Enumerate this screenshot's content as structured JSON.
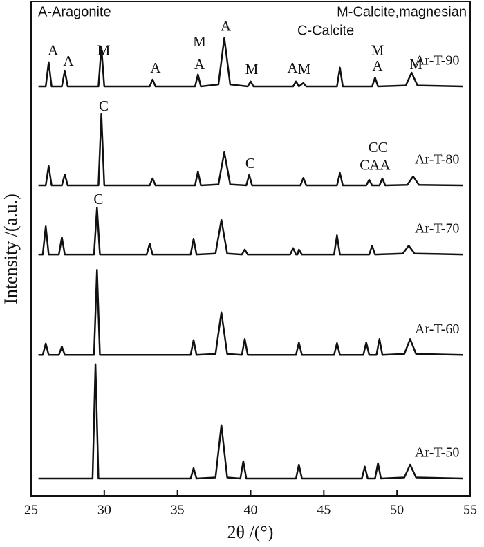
{
  "chart_data": {
    "type": "line",
    "xlabel": "2θ /(°)",
    "ylabel": "Intensity /(a.u.)",
    "xlim": [
      25,
      55
    ],
    "xticks": [
      25,
      30,
      35,
      40,
      45,
      50,
      55
    ],
    "ylim": [
      0,
      100
    ],
    "key": [
      "A-Aragonite",
      "M-Calcite,magnesian",
      "C-Calcite"
    ],
    "series": [
      {
        "name": "Ar-T-90",
        "color": "#111111",
        "x": [
          25.5,
          26.0,
          26.2,
          26.4,
          27.1,
          27.3,
          27.5,
          29.6,
          29.8,
          30.0,
          33.1,
          33.3,
          33.5,
          36.2,
          36.4,
          36.6,
          37.8,
          38.2,
          38.6,
          39.8,
          40.0,
          40.2,
          42.9,
          43.1,
          43.3,
          43.6,
          43.8,
          45.9,
          46.1,
          46.3,
          48.3,
          48.5,
          48.7,
          50.6,
          51.0,
          51.4,
          54.5
        ],
        "values": [
          82.8,
          82.8,
          87.7,
          82.8,
          82.8,
          86.0,
          82.8,
          82.8,
          90.8,
          82.8,
          82.8,
          84.2,
          82.8,
          82.8,
          85.2,
          82.8,
          83.2,
          92.6,
          83.2,
          82.8,
          83.8,
          82.8,
          82.8,
          83.8,
          82.8,
          83.5,
          82.8,
          82.8,
          86.6,
          82.8,
          82.8,
          84.6,
          82.8,
          83.0,
          85.6,
          83.0,
          82.8
        ]
      },
      {
        "name": "Ar-T-80",
        "color": "#111111",
        "x": [
          25.5,
          26.0,
          26.2,
          26.4,
          27.1,
          27.3,
          27.5,
          29.6,
          29.8,
          30.0,
          33.1,
          33.3,
          33.5,
          36.2,
          36.4,
          36.6,
          37.8,
          38.2,
          38.6,
          39.7,
          39.9,
          40.1,
          43.4,
          43.6,
          43.8,
          45.9,
          46.1,
          46.3,
          47.9,
          48.1,
          48.3,
          48.8,
          49.0,
          49.2,
          50.7,
          51.1,
          51.5,
          54.5
        ],
        "values": [
          62.8,
          62.8,
          66.7,
          62.8,
          62.8,
          65.0,
          62.8,
          62.8,
          77.2,
          62.8,
          62.8,
          64.2,
          62.8,
          62.8,
          65.6,
          62.8,
          63.0,
          69.5,
          63.0,
          62.8,
          64.9,
          62.8,
          62.8,
          64.3,
          62.8,
          62.8,
          65.3,
          62.8,
          62.8,
          63.9,
          62.8,
          62.8,
          64.2,
          62.8,
          62.9,
          64.6,
          62.9,
          62.8
        ]
      },
      {
        "name": "Ar-T-70",
        "color": "#111111",
        "x": [
          25.5,
          25.8,
          26.0,
          26.2,
          26.9,
          27.1,
          27.3,
          29.3,
          29.5,
          29.7,
          32.9,
          33.1,
          33.3,
          35.9,
          36.1,
          36.3,
          37.6,
          38.0,
          38.4,
          39.4,
          39.6,
          39.8,
          42.7,
          42.9,
          43.1,
          43.2,
          43.3,
          43.5,
          45.7,
          45.9,
          46.1,
          48.1,
          48.3,
          48.5,
          50.4,
          50.8,
          51.2,
          54.5
        ],
        "values": [
          48.8,
          48.8,
          54.5,
          48.8,
          48.8,
          52.3,
          48.8,
          48.8,
          58.3,
          48.8,
          48.8,
          51.0,
          48.8,
          48.8,
          52.0,
          48.8,
          49.0,
          55.8,
          49.0,
          48.8,
          49.8,
          48.8,
          48.8,
          50.1,
          48.8,
          48.8,
          49.8,
          48.8,
          48.8,
          52.7,
          48.8,
          48.8,
          50.6,
          48.8,
          49.0,
          50.6,
          49.0,
          48.8
        ]
      },
      {
        "name": "Ar-T-60",
        "color": "#111111",
        "x": [
          25.5,
          25.8,
          26.0,
          26.2,
          26.9,
          27.1,
          27.3,
          29.3,
          29.5,
          29.7,
          35.9,
          36.1,
          36.3,
          37.6,
          38.0,
          38.4,
          39.4,
          39.6,
          39.8,
          43.1,
          43.3,
          43.5,
          45.7,
          45.9,
          46.1,
          47.7,
          47.9,
          48.1,
          48.6,
          48.8,
          49.0,
          50.5,
          50.9,
          51.3,
          54.5
        ],
        "values": [
          28.5,
          28.5,
          30.8,
          28.5,
          28.5,
          30.2,
          28.5,
          28.5,
          45.7,
          28.5,
          28.5,
          31.5,
          28.5,
          28.7,
          37.1,
          28.7,
          28.5,
          31.7,
          28.5,
          28.5,
          31.0,
          28.5,
          28.5,
          30.9,
          28.5,
          28.5,
          31.0,
          28.5,
          28.5,
          31.7,
          28.5,
          28.7,
          31.7,
          28.7,
          28.5
        ]
      },
      {
        "name": "Ar-T-50",
        "color": "#111111",
        "x": [
          25.5,
          29.2,
          29.4,
          29.6,
          35.9,
          36.1,
          36.3,
          37.6,
          38.0,
          38.4,
          39.3,
          39.5,
          39.7,
          43.1,
          43.3,
          43.5,
          47.6,
          47.8,
          48.0,
          48.5,
          48.7,
          48.9,
          50.5,
          50.9,
          51.3,
          54.5
        ],
        "values": [
          3.5,
          3.5,
          26.6,
          3.5,
          3.5,
          5.6,
          3.5,
          3.7,
          14.3,
          3.7,
          3.5,
          7.0,
          3.5,
          3.5,
          6.3,
          3.5,
          3.5,
          5.9,
          3.5,
          3.5,
          6.6,
          3.5,
          3.7,
          6.3,
          3.7,
          3.5
        ]
      }
    ],
    "annotations": [
      {
        "text": "A",
        "x": 26.5,
        "y": 89.8
      },
      {
        "text": "A",
        "x": 27.55,
        "y": 87.7
      },
      {
        "text": "M",
        "x": 29.96,
        "y": 89.8
      },
      {
        "text": "A",
        "x": 33.5,
        "y": 86.3
      },
      {
        "text": "M",
        "x": 36.5,
        "y": 91.6
      },
      {
        "text": "A",
        "x": 36.5,
        "y": 87.0
      },
      {
        "text": "A",
        "x": 38.3,
        "y": 94.7
      },
      {
        "text": "M",
        "x": 40.07,
        "y": 86.0
      },
      {
        "text": "A",
        "x": 42.86,
        "y": 86.3
      },
      {
        "text": "M",
        "x": 43.66,
        "y": 86.0
      },
      {
        "text": "M",
        "x": 48.67,
        "y": 89.8
      },
      {
        "text": "A",
        "x": 48.67,
        "y": 86.7
      },
      {
        "text": "M",
        "x": 51.3,
        "y": 87.0
      },
      {
        "text": "C",
        "x": 29.96,
        "y": 78.6
      },
      {
        "text": "C",
        "x": 39.97,
        "y": 67.0
      },
      {
        "text": "CC",
        "x": 48.7,
        "y": 70.2
      },
      {
        "text": "CAA",
        "x": 48.5,
        "y": 66.6
      },
      {
        "text": "C",
        "x": 29.6,
        "y": 59.7
      }
    ]
  }
}
